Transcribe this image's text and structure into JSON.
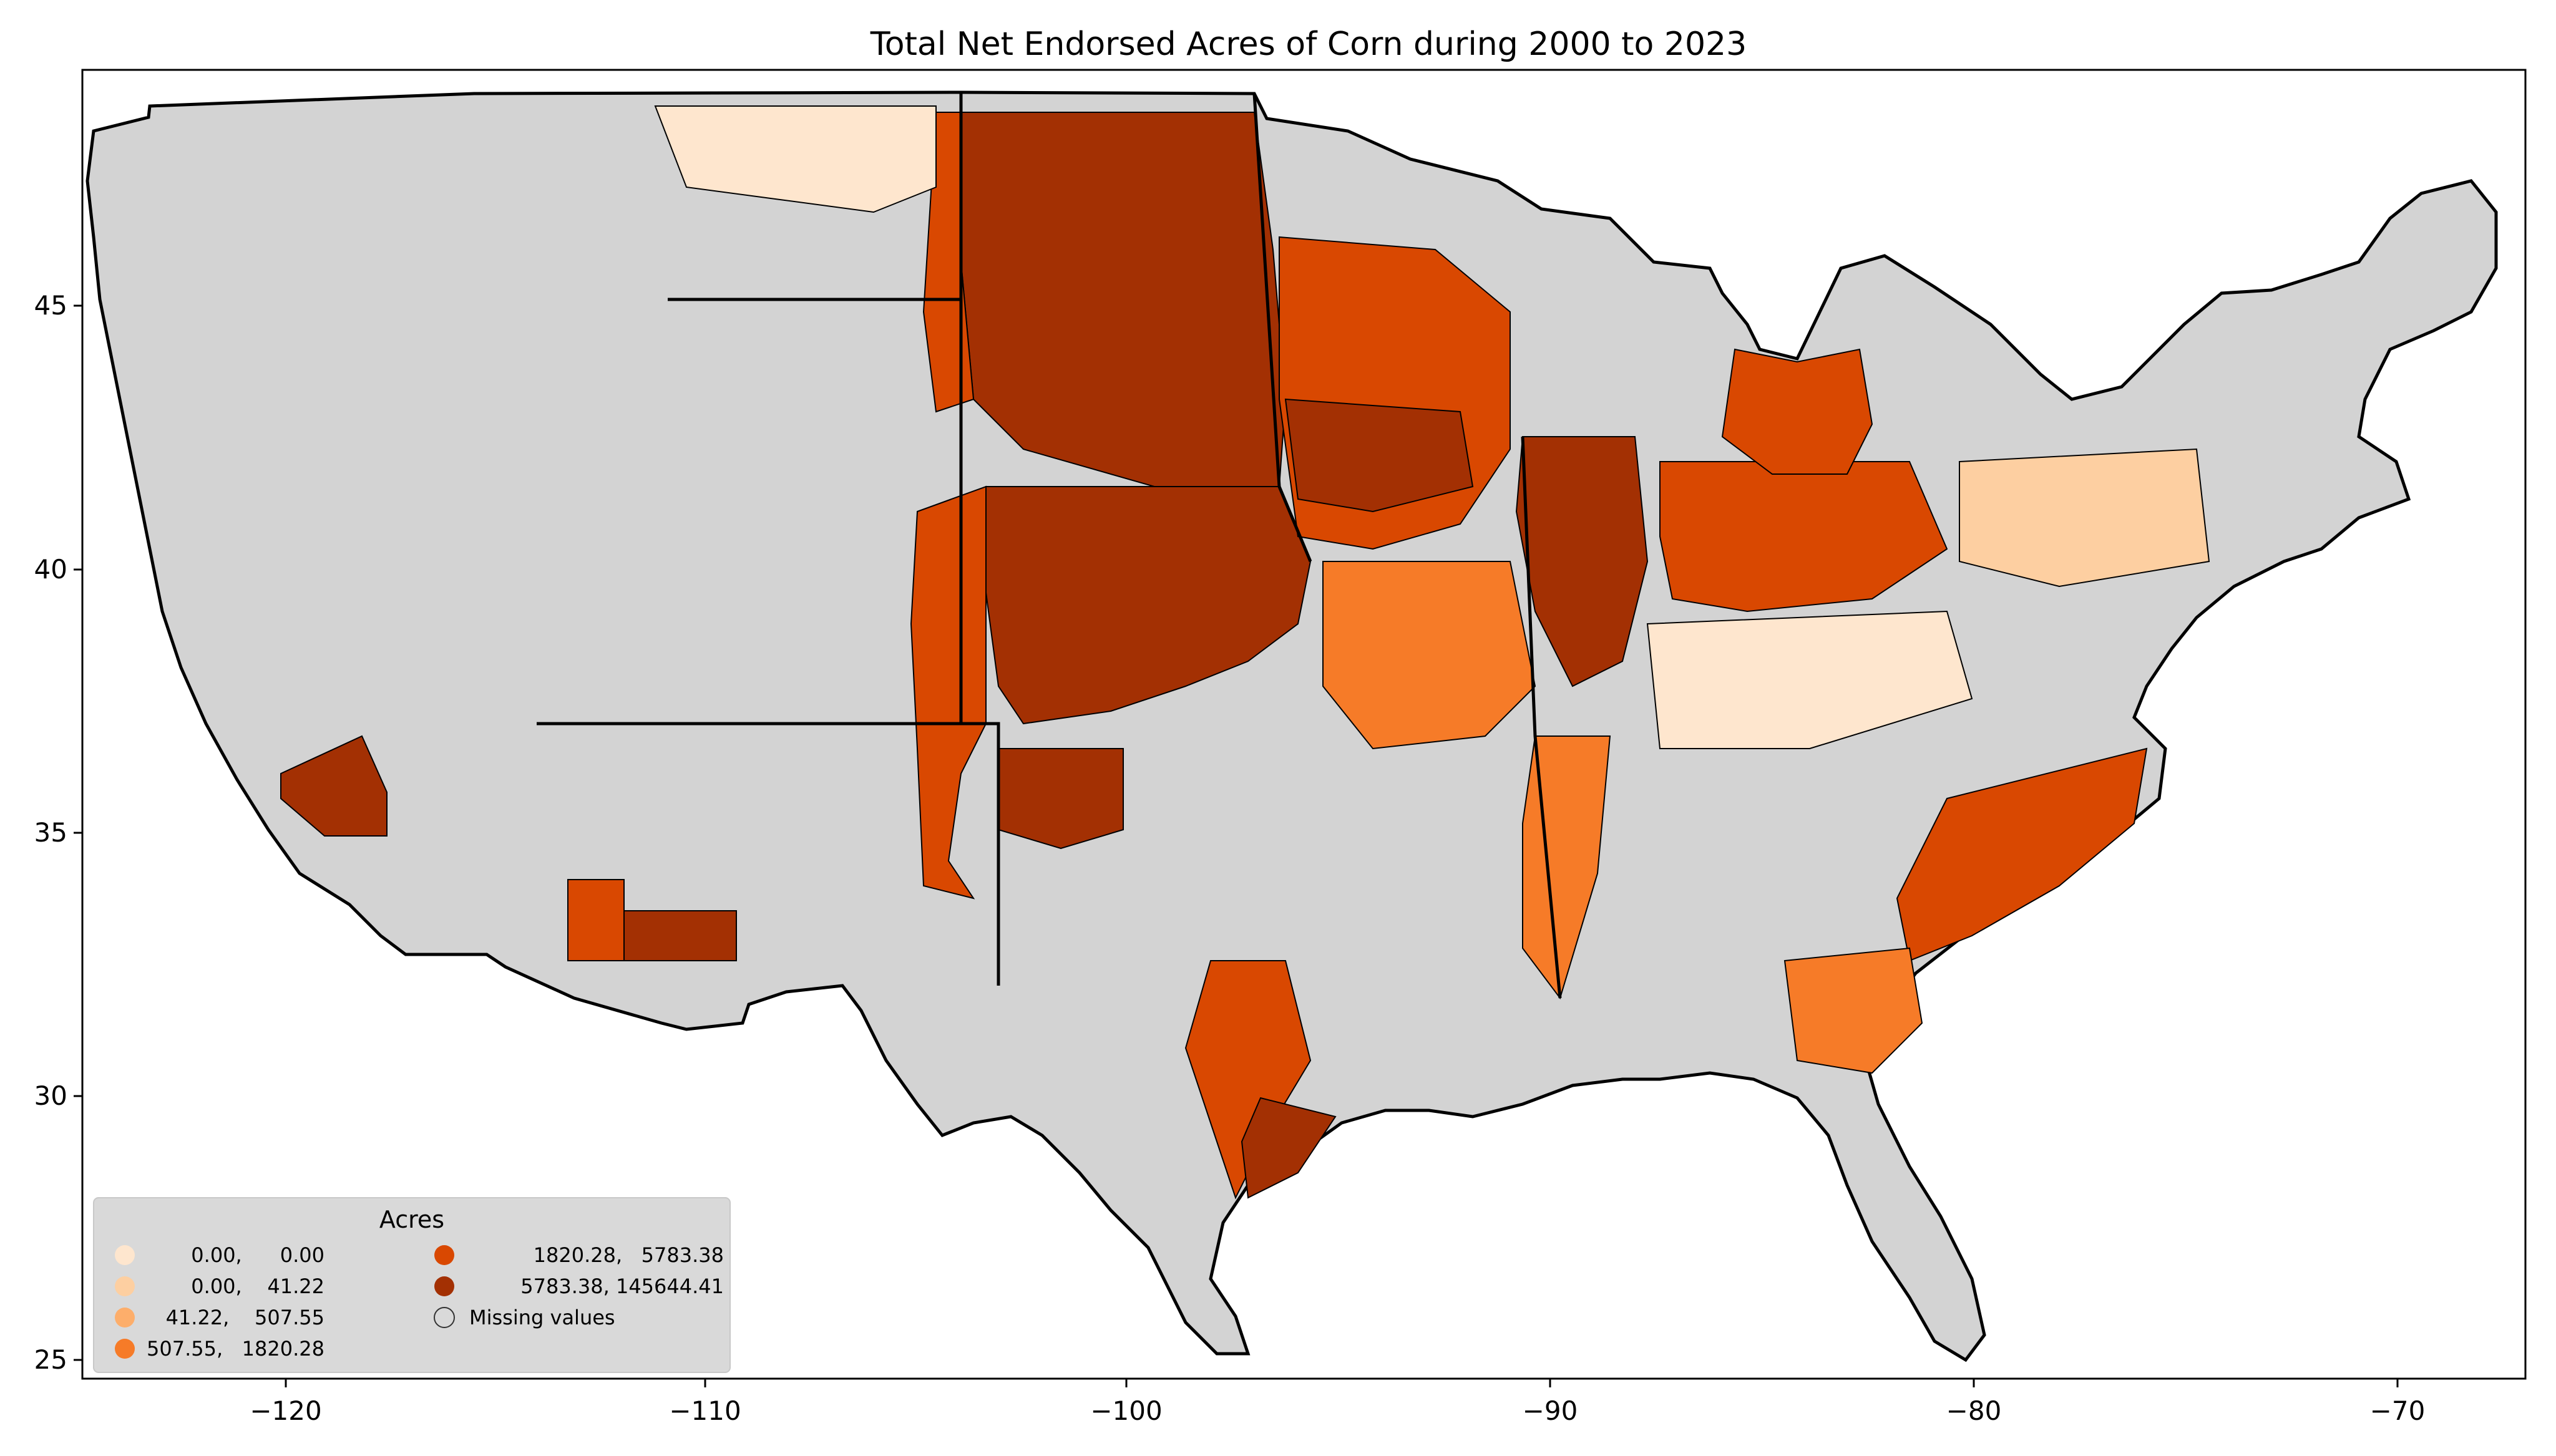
{
  "title": "Total Net Endorsed Acres of Corn during 2000 to 2023",
  "x_ticks": [
    "−120",
    "−110",
    "−100",
    "−90",
    "−80",
    "−70"
  ],
  "y_ticks": [
    "25",
    "30",
    "35",
    "40",
    "45"
  ],
  "legend": {
    "title": "Acres",
    "entries": [
      {
        "label": "0.00,      0.00",
        "color": "#fee6ce"
      },
      {
        "label": "0.00,    41.22",
        "color": "#fdcfa1"
      },
      {
        "label": "41.22,    507.55",
        "color": "#fdae6b"
      },
      {
        "label": "507.55,   1820.28",
        "color": "#f67b28"
      },
      {
        "label": "1820.28,   5783.38",
        "color": "#d94801"
      },
      {
        "label": "5783.38, 145644.41",
        "color": "#a33003"
      },
      {
        "label": "Missing values",
        "color": "#d3d3d3"
      }
    ]
  },
  "colors": {
    "missing": "#d3d3d3",
    "background": "#ffffff"
  }
}
